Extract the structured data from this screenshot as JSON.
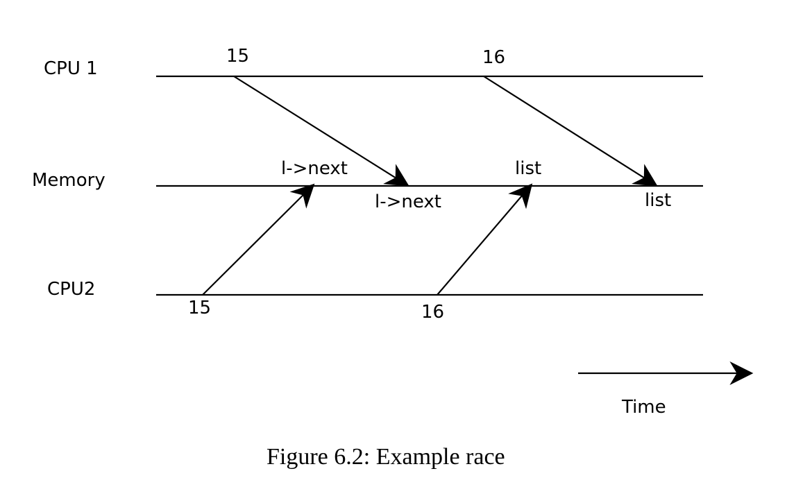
{
  "lanes": {
    "cpu1": "CPU 1",
    "memory": "Memory",
    "cpu2": "CPU2"
  },
  "events": {
    "cpu1_a": "15",
    "cpu1_b": "16",
    "cpu2_a": "15",
    "cpu2_b": "16",
    "mem_write_cpu2_a": "l->next",
    "mem_write_cpu1_a": "l->next",
    "mem_write_cpu2_b": "list",
    "mem_write_cpu1_b": "list"
  },
  "time_label": "Time",
  "caption": "Figure 6.2: Example race"
}
